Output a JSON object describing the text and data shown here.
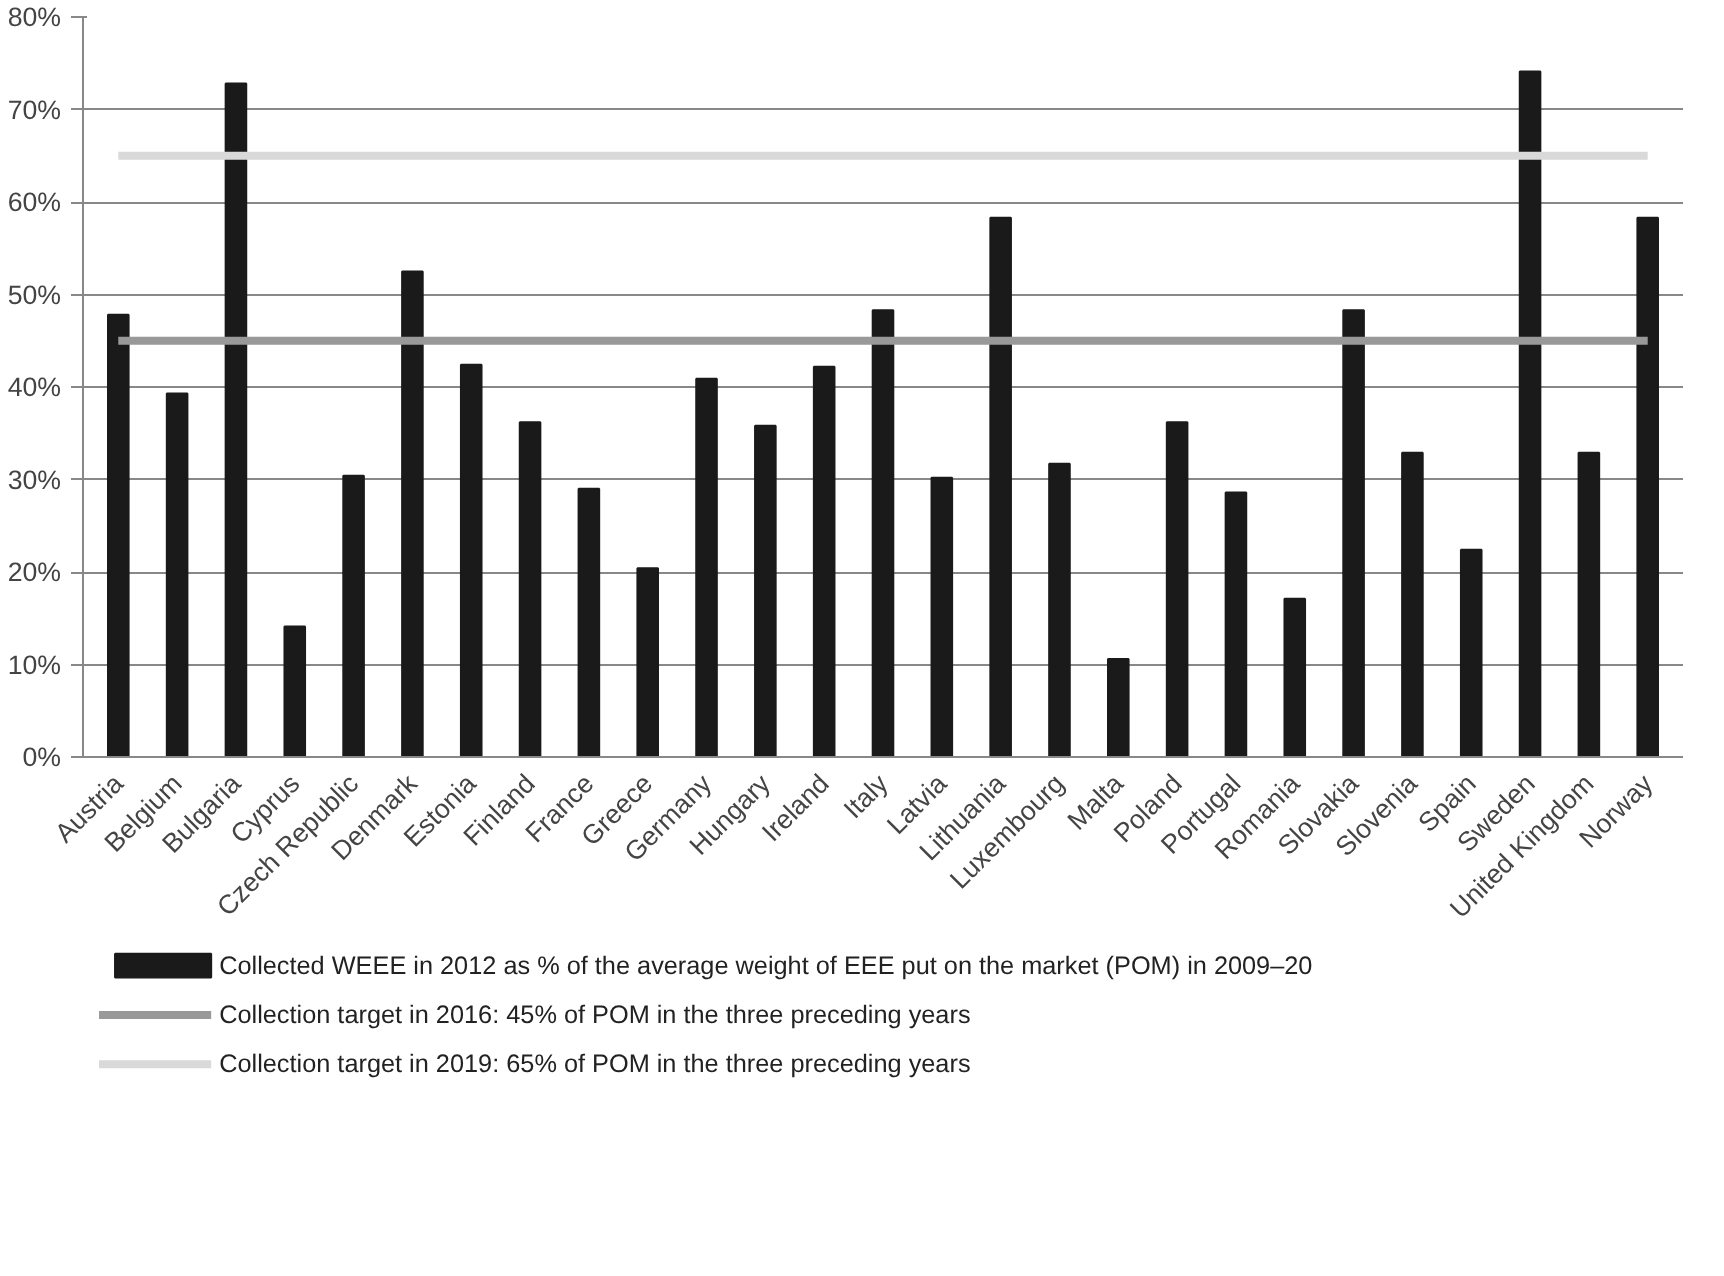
{
  "chart_data": {
    "type": "bar",
    "categories": [
      "Austria",
      "Belgium",
      "Bulgaria",
      "Cyprus",
      "Czech Republic",
      "Denmark",
      "Estonia",
      "Finland",
      "France",
      "Greece",
      "Germany",
      "Hungary",
      "Ireland",
      "Italy",
      "Latvia",
      "Lithuania",
      "Luxembourg",
      "Malta",
      "Poland",
      "Portugal",
      "Romania",
      "Slovakia",
      "Slovenia",
      "Spain",
      "Sweden",
      "United Kingdom",
      "Norway"
    ],
    "series": [
      {
        "name": "Collected WEEE in 2012 as % of the average weight of EEE put on the market (POM) in 2009–20",
        "color": "#1a1a1a",
        "values": [
          47.8,
          39.3,
          72.8,
          14.1,
          30.4,
          52.5,
          42.4,
          36.2,
          29.0,
          20.4,
          40.9,
          35.8,
          42.2,
          48.3,
          30.2,
          58.3,
          31.7,
          10.6,
          36.2,
          28.6,
          17.1,
          48.3,
          32.9,
          22.4,
          74.1,
          32.9,
          58.3
        ]
      }
    ],
    "ref_lines": [
      {
        "axis": "y",
        "value": 45,
        "label": "Collection target in 2016: 45% of POM in the three preceding years",
        "color": "#999999"
      },
      {
        "axis": "y",
        "value": 65,
        "label": "Collection target in 2019: 65% of POM in the three preceding years",
        "color": "#d9d9d9"
      }
    ],
    "ylim": [
      0,
      80
    ],
    "yticks": [
      {
        "value": 0,
        "label": "0%"
      },
      {
        "value": 10,
        "label": "10%"
      },
      {
        "value": 20,
        "label": "20%"
      },
      {
        "value": 30,
        "label": "30%"
      },
      {
        "value": 40,
        "label": "40%"
      },
      {
        "value": 50,
        "label": "50%"
      },
      {
        "value": 60,
        "label": "60%"
      },
      {
        "value": 70,
        "label": "70%"
      },
      {
        "value": 80,
        "label": "80%"
      }
    ],
    "grid": "y",
    "legend": "bottom"
  }
}
